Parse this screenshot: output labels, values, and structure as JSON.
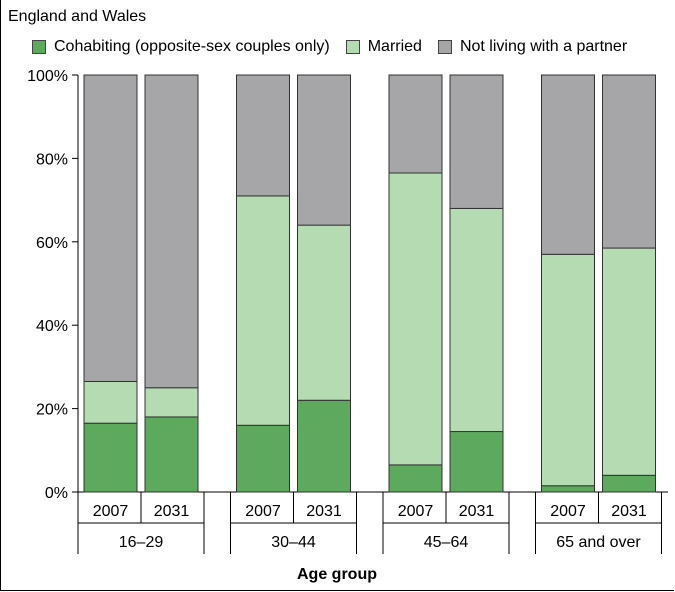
{
  "subtitle": "England and Wales",
  "legend": [
    {
      "label": "Cohabiting (opposite-sex couples only)",
      "color": "#5daa5f"
    },
    {
      "label": "Married",
      "color": "#b5dbb3"
    },
    {
      "label": "Not living with a partner",
      "color": "#a6a6a9"
    }
  ],
  "chart_data": {
    "type": "bar",
    "stacked": true,
    "xlabel": "Age group",
    "ylabel": "",
    "ylim": [
      0,
      100
    ],
    "yticks": [
      "0%",
      "20%",
      "40%",
      "60%",
      "80%",
      "100%"
    ],
    "groups": [
      {
        "label": "16–29",
        "categories": [
          "2007",
          "2031"
        ]
      },
      {
        "label": "30–44",
        "categories": [
          "2007",
          "2031"
        ]
      },
      {
        "label": "45–64",
        "categories": [
          "2007",
          "2031"
        ]
      },
      {
        "label": "65 and over",
        "categories": [
          "2007",
          "2031"
        ]
      }
    ],
    "series": [
      {
        "name": "Cohabiting (opposite-sex couples only)",
        "color": "#5daa5f",
        "values": [
          16.5,
          18,
          16,
          22,
          6.5,
          14.5,
          1.5,
          4
        ]
      },
      {
        "name": "Married",
        "color": "#b5dbb3",
        "values": [
          10,
          7,
          55,
          42,
          70,
          53.5,
          55.5,
          54.5
        ]
      },
      {
        "name": "Not living with a partner",
        "color": "#a6a6a9",
        "values": [
          73.5,
          75,
          29,
          36,
          23.5,
          32,
          43,
          41.5
        ]
      }
    ],
    "grid": false,
    "legend_position": "top"
  }
}
